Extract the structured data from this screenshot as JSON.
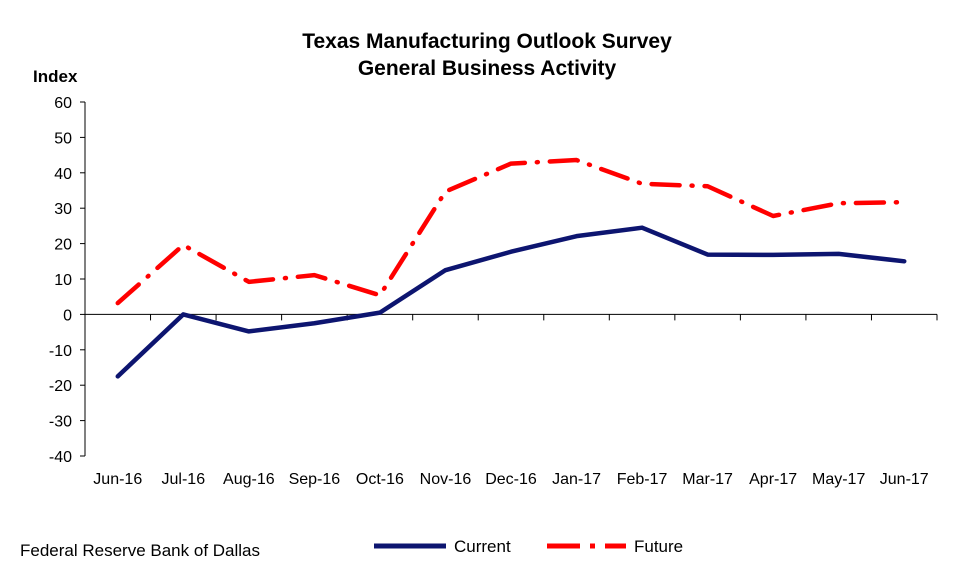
{
  "source": "Federal Reserve Bank of Dallas",
  "colors": {
    "current": "#0d1570",
    "future": "#ff0000",
    "axis": "#000000"
  },
  "chart_data": {
    "type": "line",
    "title": "Texas Manufacturing Outlook Survey",
    "subtitle": "General Business Activity",
    "ylabel": "Index",
    "xlabel": "",
    "ylim": [
      -40,
      60
    ],
    "yticks": [
      60,
      50,
      40,
      30,
      20,
      10,
      0,
      -10,
      -20,
      -30,
      -40
    ],
    "grid": false,
    "legend_position": "bottom",
    "categories": [
      "Jun-16",
      "Jul-16",
      "Aug-16",
      "Sep-16",
      "Oct-16",
      "Nov-16",
      "Dec-16",
      "Jan-17",
      "Feb-17",
      "Mar-17",
      "Apr-17",
      "May-17",
      "Jun-17"
    ],
    "series": [
      {
        "name": "Current",
        "style": "solid",
        "values": [
          -17.5,
          0,
          -4.8,
          -2.5,
          0.5,
          12.5,
          17.7,
          22.1,
          24.5,
          16.9,
          16.8,
          17.1,
          15.0
        ]
      },
      {
        "name": "Future",
        "style": "dash-dot",
        "values": [
          3.2,
          19.6,
          9.2,
          11.1,
          5.4,
          34.7,
          42.6,
          43.6,
          36.9,
          36.2,
          27.8,
          31.4,
          31.7
        ]
      }
    ]
  }
}
